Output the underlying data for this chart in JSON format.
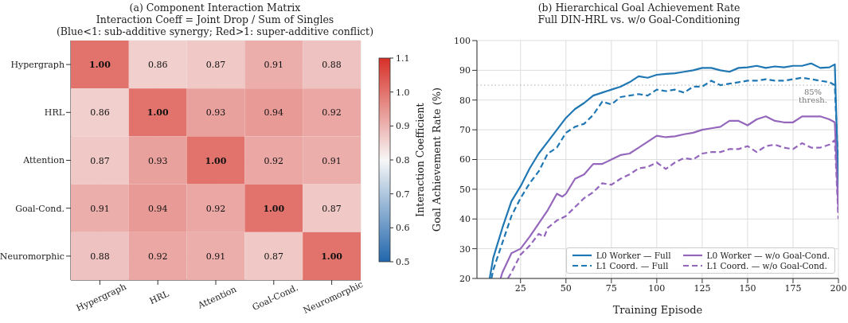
{
  "chart_data": [
    {
      "type": "heatmap",
      "title": "(a) Component Interaction Matrix",
      "subtitle": "Interaction Coeff = Joint Drop / Sum of Singles\n(Blue<1: sub-additive synergy; Red>1: super-additive conflict)",
      "categories": [
        "Hypergraph",
        "HRL",
        "Attention",
        "Goal-Cond.",
        "Neuromorphic"
      ],
      "y_categories": [
        "Hypergraph",
        "HRL",
        "Attention",
        "Goal-Cond.",
        "Neuromorphic"
      ],
      "cells": [
        [
          1.0,
          0.86,
          0.87,
          0.91,
          0.88
        ],
        [
          0.86,
          1.0,
          0.93,
          0.94,
          0.92
        ],
        [
          0.87,
          0.93,
          1.0,
          0.92,
          0.91
        ],
        [
          0.91,
          0.94,
          0.92,
          1.0,
          0.87
        ],
        [
          0.88,
          0.92,
          0.91,
          0.87,
          1.0
        ]
      ],
      "cell_labels": [
        [
          "1.00",
          "0.86",
          "0.87",
          "0.91",
          "0.88"
        ],
        [
          "0.86",
          "1.00",
          "0.93",
          "0.94",
          "0.92"
        ],
        [
          "0.87",
          "0.93",
          "1.00",
          "0.92",
          "0.91"
        ],
        [
          "0.91",
          "0.94",
          "0.92",
          "1.00",
          "0.87"
        ],
        [
          "0.88",
          "0.92",
          "0.91",
          "0.87",
          "1.00"
        ]
      ],
      "clabel": "Interaction Coefficient",
      "clim": [
        0.5,
        1.1
      ],
      "cticks": [
        0.5,
        0.6,
        0.7,
        0.8,
        0.9,
        {
          "value": 1.0,
          "label": "1.0"
        },
        1.1
      ],
      "grid": true
    },
    {
      "type": "line",
      "title": "(b) Hierarchical Goal Achievement Rate",
      "subtitle": "Full DIN-HRL vs. w/o Goal-Conditioning",
      "xlabel": "Training Episode",
      "ylabel": "Goal Achievement Rate (%)",
      "xlim": [
        1,
        200
      ],
      "xticks": [
        25,
        50,
        75,
        100,
        125,
        150,
        175,
        200
      ],
      "ylim": [
        20,
        100
      ],
      "yticks": [
        20,
        30,
        40,
        50,
        60,
        70,
        80,
        90,
        100
      ],
      "grid": true,
      "legend": "bottom right",
      "marker": "none",
      "series": [
        {
          "name": "L0 Worker — Full",
          "color": "#1f77b4",
          "line_style": "solid",
          "x": [
            8,
            10,
            15,
            20,
            25,
            30,
            35,
            40,
            45,
            50,
            55,
            60,
            65,
            70,
            75,
            80,
            85,
            90,
            95,
            100,
            105,
            110,
            115,
            120,
            125,
            130,
            135,
            140,
            145,
            150,
            155,
            160,
            165,
            170,
            175,
            180,
            185,
            190,
            195,
            198,
            200
          ],
          "values": [
            20,
            27,
            37,
            46,
            51,
            57,
            62,
            66,
            70,
            74,
            77,
            79,
            81.5,
            82.5,
            83.5,
            84.5,
            86,
            88,
            87.5,
            88.5,
            88.8,
            89,
            89.5,
            90,
            90.8,
            90.8,
            90,
            89.5,
            90.8,
            91,
            91.5,
            90.8,
            91.3,
            91,
            91.5,
            91.5,
            92.3,
            90.8,
            91,
            92,
            50
          ]
        },
        {
          "name": "L1 Coord. — Full",
          "color": "#1f77b4",
          "line_style": "dashed",
          "x": [
            9,
            10,
            15,
            20,
            25,
            30,
            35,
            40,
            45,
            50,
            55,
            60,
            65,
            70,
            75,
            80,
            85,
            90,
            95,
            100,
            105,
            110,
            115,
            120,
            125,
            130,
            135,
            140,
            145,
            150,
            155,
            160,
            165,
            170,
            175,
            180,
            185,
            190,
            195,
            198,
            200
          ],
          "values": [
            20,
            23,
            32,
            41,
            47,
            52,
            56,
            62,
            64,
            69,
            71,
            72,
            75,
            79.5,
            78.5,
            81,
            81.5,
            82,
            81.5,
            83.5,
            83,
            83.5,
            82.5,
            84.5,
            84.5,
            86.5,
            85,
            85.5,
            86,
            86.5,
            86.5,
            87,
            86.5,
            86.5,
            87,
            87.5,
            87,
            86.5,
            86,
            85,
            55
          ]
        },
        {
          "name": "L0 Worker — w/o Goal-Cond.",
          "color": "#9467bd",
          "line_style": "solid",
          "x": [
            14,
            15,
            20,
            25,
            30,
            35,
            40,
            45,
            48,
            50,
            55,
            60,
            65,
            70,
            75,
            80,
            85,
            90,
            95,
            100,
            105,
            110,
            115,
            120,
            125,
            130,
            135,
            140,
            145,
            150,
            155,
            160,
            165,
            170,
            175,
            180,
            185,
            190,
            195,
            198,
            200
          ],
          "values": [
            20,
            22,
            28.5,
            30,
            34,
            38.5,
            43,
            48.5,
            47.5,
            48.5,
            53.5,
            55,
            58.5,
            58.5,
            60,
            61.5,
            62,
            64,
            66,
            68,
            67.5,
            67.8,
            68.5,
            69,
            70,
            70.5,
            71,
            73,
            73,
            71.5,
            73.5,
            74.5,
            73,
            72.5,
            72.5,
            74.5,
            74.5,
            74.5,
            73.5,
            72.5,
            42
          ]
        },
        {
          "name": "L1 Coord. — w/o Goal-Cond.",
          "color": "#9467bd",
          "line_style": "dashed",
          "x": [
            18,
            20,
            25,
            30,
            35,
            38,
            40,
            45,
            50,
            55,
            60,
            65,
            70,
            75,
            80,
            85,
            90,
            95,
            100,
            105,
            110,
            115,
            120,
            125,
            130,
            135,
            140,
            145,
            150,
            155,
            160,
            165,
            170,
            175,
            180,
            185,
            190,
            195,
            198,
            200
          ],
          "values": [
            20,
            22,
            28,
            31,
            35,
            34,
            37,
            39.5,
            41,
            44,
            47,
            49,
            52,
            51.5,
            53.5,
            55,
            57,
            57.5,
            59,
            56.8,
            59,
            60.5,
            60,
            62,
            62.5,
            62.5,
            63.5,
            63.5,
            64.5,
            62.5,
            64.5,
            65,
            64,
            63.5,
            65.5,
            64,
            64,
            65,
            66.5,
            40
          ]
        }
      ],
      "ref_lines": [
        {
          "axis": "y",
          "value": 85,
          "label": "85% thresh.",
          "color": "#aaaaaa",
          "line_style": "dotted"
        }
      ]
    }
  ]
}
